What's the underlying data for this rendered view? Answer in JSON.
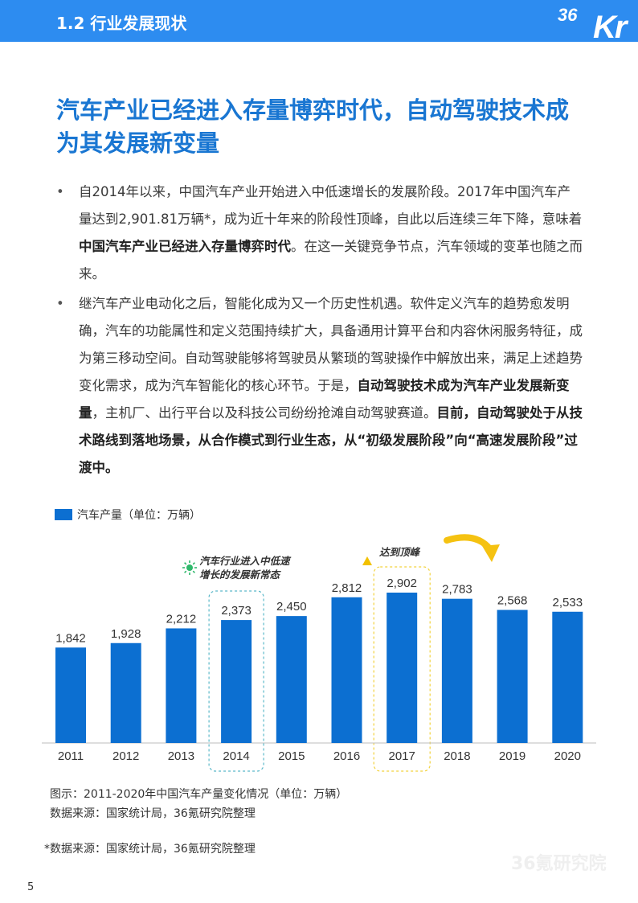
{
  "header": {
    "section_title": "1.2 行业发展现状",
    "logo_number": "36",
    "logo_letters": "Kr"
  },
  "headline": "汽车产业已经进入存量博弈时代，自动驾驶技术成为其发展新变量",
  "bullets": [
    {
      "symbol": "•",
      "p1": "自2014年以来，中国汽车产业开始进入中低速增长的发展阶段。2017年中国汽车产量达到2,901.81万辆*，成为近十年来的阶段性顶峰，自此以后连续三年下降，意味着",
      "b1": "中国汽车产业已经进入存量博弈时代",
      "p2": "。在这一关键竞争节点，汽车领域的变革也随之而来。"
    },
    {
      "symbol": "•",
      "p1": "继汽车产业电动化之后，智能化成为又一个历史性机遇。软件定义汽车的趋势愈发明确，汽车的功能属性和定义范围持续扩大，具备通用计算平台和内容休闲服务特征，成为第三移动空间。自动驾驶能够将驾驶员从繁琐的驾驶操作中解放出来，满足上述趋势变化需求，成为汽车智能化的核心环节。于是，",
      "b1": "自动驾驶技术成为汽车产业发展新变量",
      "p2": "，主机厂、出行平台以及科技公司纷纷抢滩自动驾驶赛道。",
      "b2": "目前，自动驾驶处于从技术路线到落地场景，从合作模式到行业生态，从“初级发展阶段”向“高速发展阶段”过渡中。"
    }
  ],
  "chart_data": {
    "type": "bar",
    "categories": [
      "2011",
      "2012",
      "2013",
      "2014",
      "2015",
      "2016",
      "2017",
      "2018",
      "2019",
      "2020"
    ],
    "series": [
      {
        "name": "汽车产量（单位：万辆）",
        "values": [
          1842,
          1928,
          2212,
          2373,
          2450,
          2812,
          2902,
          2783,
          2568,
          2533
        ]
      }
    ],
    "value_labels": [
      "1,842",
      "1,928",
      "2,212",
      "2,373",
      "2,450",
      "2,812",
      "2,902",
      "2,783",
      "2,568",
      "2,533"
    ],
    "ylim": [
      0,
      2902
    ],
    "bar_color": "#0c6fd1",
    "annotations": {
      "slowdown_text": "汽车行业进入中低速增长的发展新常态",
      "slowdown_line1": "汽车行业进入中低速",
      "slowdown_line2": "增长的发展新常态",
      "slowdown_year": "2014",
      "peak_text": "达到顶峰",
      "peak_year": "2017"
    },
    "highlight_colors": {
      "slowdown": "#5bb8c9",
      "peak": "#f2d23c",
      "arrow": "#f5c211",
      "sun_icon": "#2fb86b"
    }
  },
  "captions": {
    "figure": "图示：2011-2020年中国汽车产量变化情况（单位：万辆）",
    "source": "数据来源：国家统计局，36氪研究院整理",
    "footnote": "*数据来源：国家统计局，36氪研究院整理"
  },
  "page_number": "5",
  "watermark": "36氪研究院"
}
